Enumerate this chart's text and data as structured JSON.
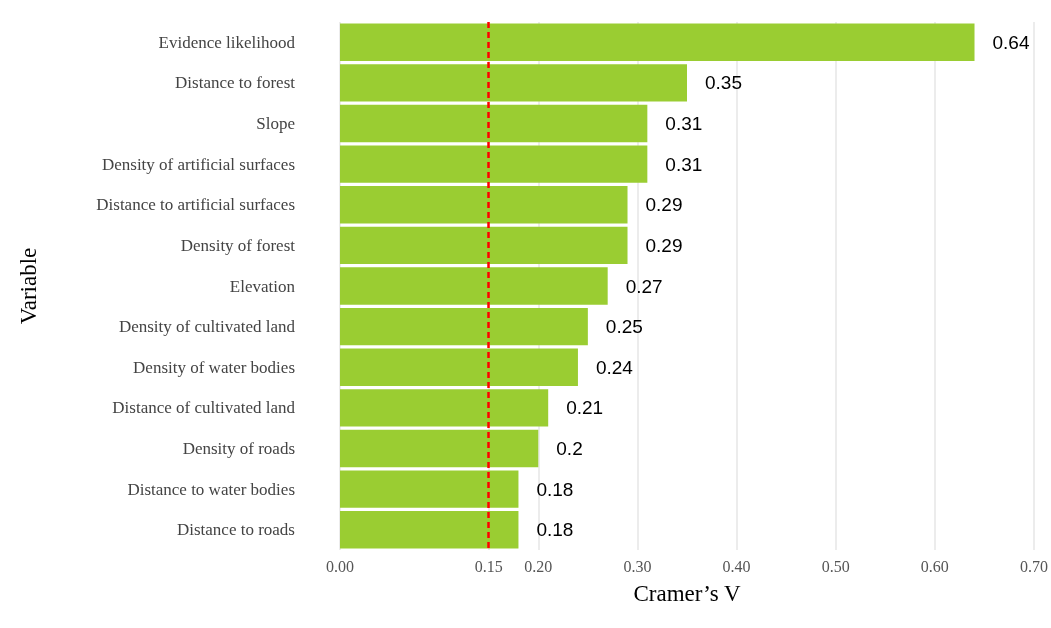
{
  "chart_data": {
    "type": "bar",
    "orientation": "horizontal",
    "xlabel": "Cramer’s V",
    "ylabel": "Variable",
    "categories": [
      "Evidence likelihood",
      "Distance to forest",
      "Slope",
      "Density of artificial surfaces",
      "Distance to artificial surfaces",
      "Density of forest",
      "Elevation",
      "Density of cultivated land",
      "Density of water bodies",
      "Distance of cultivated land",
      "Density of roads",
      "Distance to water bodies",
      "Distance to roads"
    ],
    "values": [
      0.64,
      0.35,
      0.31,
      0.31,
      0.29,
      0.29,
      0.27,
      0.25,
      0.24,
      0.21,
      0.2,
      0.18,
      0.18
    ],
    "color": "#9acd32",
    "data_labels": true,
    "xlim": [
      0,
      0.7
    ],
    "xticks": [
      {
        "value": 0,
        "label": "0.00"
      },
      {
        "value": 0.15,
        "label": "0.15"
      },
      {
        "value": 0.2,
        "label": "0.20"
      },
      {
        "value": 0.3,
        "label": "0.30"
      },
      {
        "value": 0.4,
        "label": "0.40"
      },
      {
        "value": 0.5,
        "label": "0.50"
      },
      {
        "value": 0.6,
        "label": "0.60"
      },
      {
        "value": 0.7,
        "label": "0.70"
      }
    ],
    "grid": "x",
    "ref_lines": [
      {
        "axis": "x",
        "value": 0.15,
        "color": "#ff0000",
        "line_style": "dashed"
      }
    ]
  }
}
